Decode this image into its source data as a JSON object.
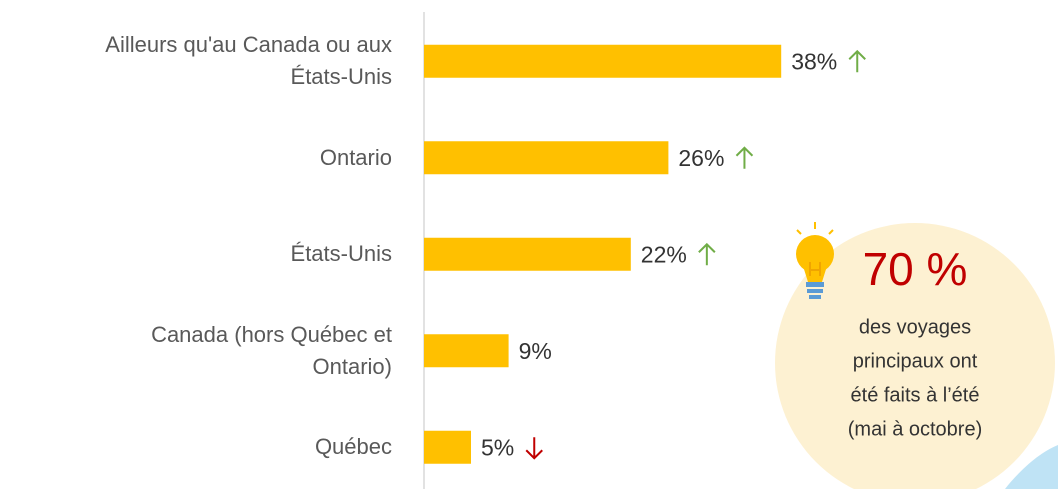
{
  "chart_data": {
    "type": "bar",
    "orientation": "horizontal",
    "categories": [
      "Ailleurs qu'au Canada ou aux États-Unis",
      "Ontario",
      "États-Unis",
      "Canada (hors Québec et Ontario)",
      "Québec"
    ],
    "values": [
      38,
      26,
      22,
      9,
      5
    ],
    "value_labels": [
      "38%",
      "26%",
      "22%",
      "9%",
      "5%"
    ],
    "trends": [
      "up",
      "up",
      "up",
      null,
      "down"
    ],
    "trend_colors": {
      "up": "#70ad47",
      "down": "#c00000"
    },
    "color": "#ffc000",
    "xlim": [
      0,
      40
    ],
    "annotation": {
      "headline": "70 %",
      "lines": [
        "des voyages",
        "principaux ont",
        "été faits à l’été",
        "(mai à octobre)"
      ]
    }
  }
}
